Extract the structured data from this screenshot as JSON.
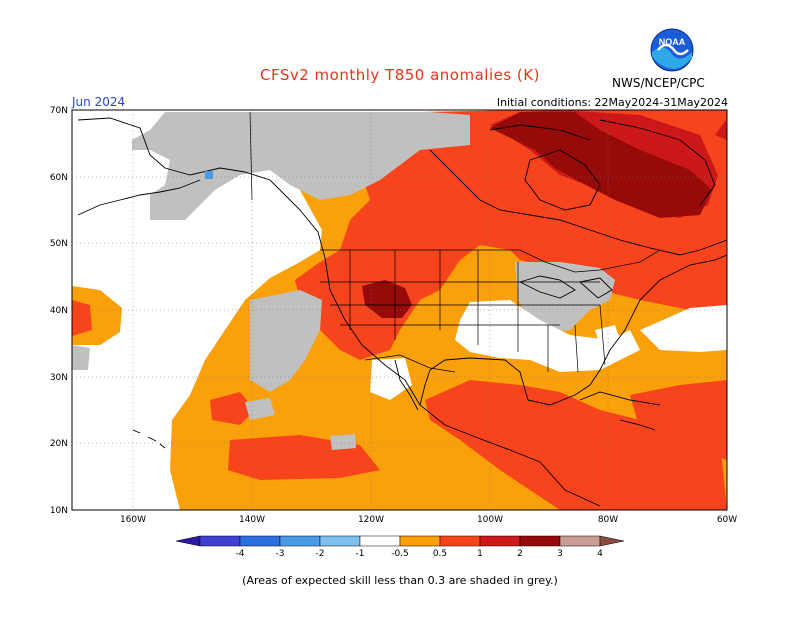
{
  "header": {
    "title": "CFSv2 monthly T850 anomalies (K)",
    "month": "Jun 2024",
    "initial_conditions": "Initial conditions: 22May2024-31May2024",
    "agency": "NWS/NCEP/CPC",
    "logo_text": "NOAA"
  },
  "axes": {
    "lat_labels": [
      "70N",
      "60N",
      "50N",
      "40N",
      "30N",
      "20N",
      "10N"
    ],
    "lon_labels": [
      "160W",
      "140W",
      "120W",
      "100W",
      "80W",
      "60W"
    ]
  },
  "legend": {
    "labels": [
      "-4",
      "-3",
      "-2",
      "-1",
      "-0.5",
      "0.5",
      "1",
      "2",
      "3",
      "4"
    ],
    "colors": [
      "#2b1aa6",
      "#4040d0",
      "#2d6fe0",
      "#4a9ae8",
      "#80c0f0",
      "#ffffff",
      "#f9a00a",
      "#f8441c",
      "#cc1818",
      "#960a0a",
      "#c89e94",
      "#8a4a40"
    ]
  },
  "colors": {
    "title": "#e8341c",
    "month": "#2646d8",
    "skill_grey": "#c0c0c0",
    "anom_05_1": "#f9a00a",
    "anom_1_2": "#f8441c",
    "anom_2_3": "#cc1818",
    "anom_3_4": "#960a0a"
  },
  "footnote": "(Areas of expected skill less than 0.3 are shaded in grey.)"
}
